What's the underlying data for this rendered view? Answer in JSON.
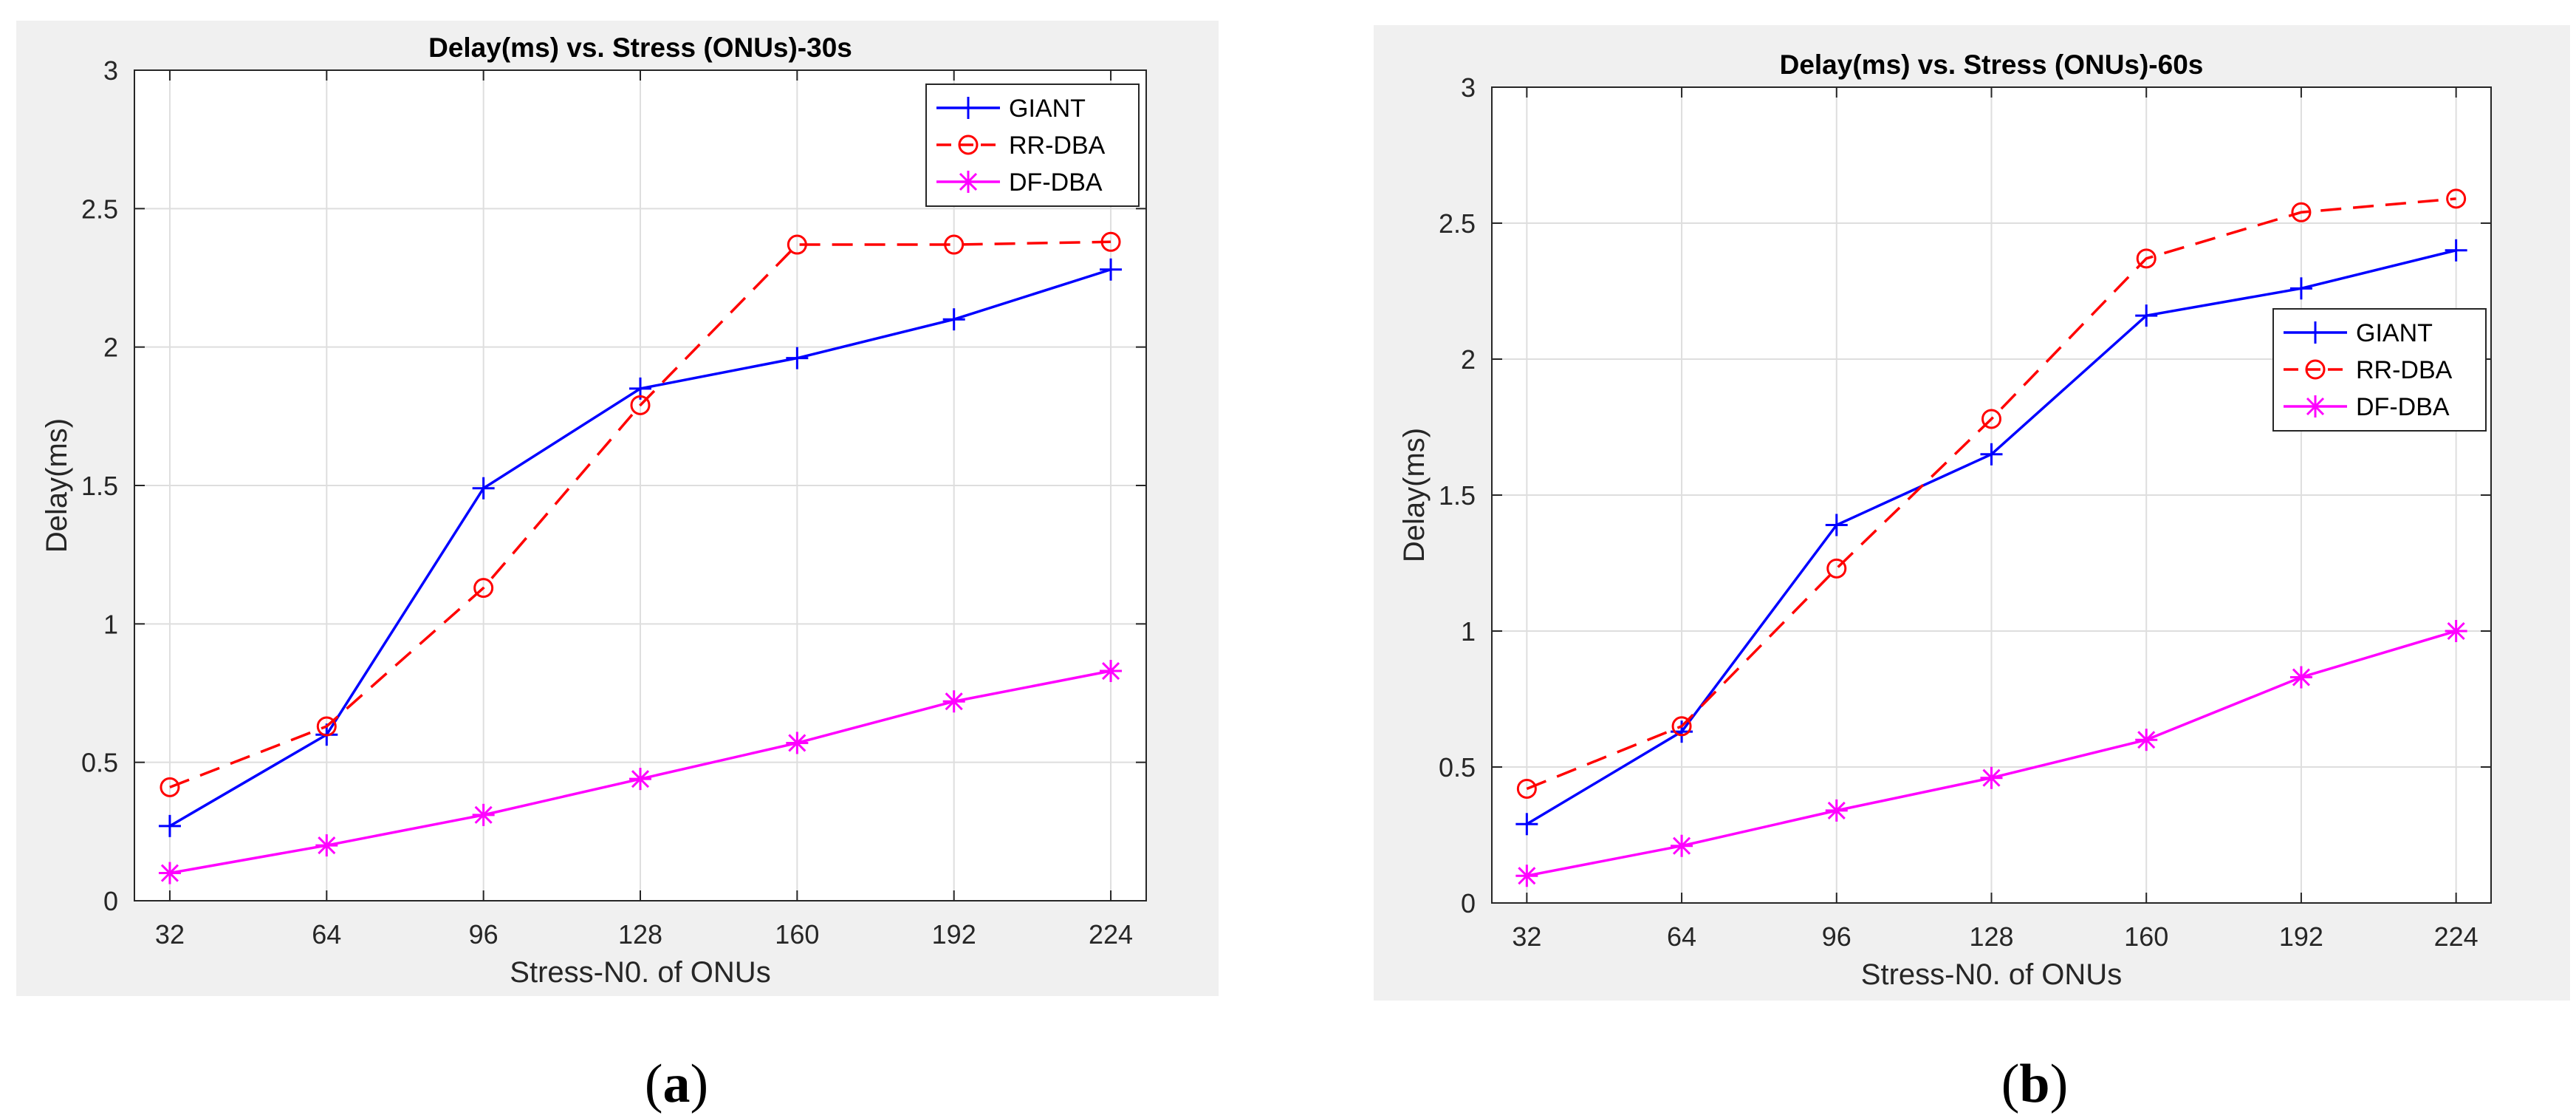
{
  "chart_data": [
    {
      "type": "line",
      "title": "Delay(ms) vs. Stress (ONUs)-30s",
      "xlabel": "Stress-N0. of ONUs",
      "ylabel": "Delay(ms)",
      "categories": [
        "32",
        "64",
        "96",
        "128",
        "160",
        "192",
        "224"
      ],
      "ylim": [
        0,
        3
      ],
      "yticks": [
        "0",
        "0.5",
        "1",
        "1.5",
        "2",
        "2.5",
        "3"
      ],
      "grid": true,
      "legend_position": "top-right",
      "series": [
        {
          "name": "GIANT",
          "color": "#0000ff",
          "marker": "plus",
          "dash": "solid",
          "values": [
            0.27,
            0.6,
            1.49,
            1.85,
            1.96,
            2.1,
            2.28
          ]
        },
        {
          "name": "RR-DBA",
          "color": "#ff0000",
          "marker": "circle",
          "dash": "dashed",
          "values": [
            0.41,
            0.63,
            1.13,
            1.79,
            2.37,
            2.37,
            2.38
          ]
        },
        {
          "name": "DF-DBA",
          "color": "#ff00ff",
          "marker": "asterisk",
          "dash": "solid",
          "values": [
            0.1,
            0.2,
            0.31,
            0.44,
            0.57,
            0.72,
            0.83
          ]
        }
      ]
    },
    {
      "type": "line",
      "title": "Delay(ms) vs. Stress (ONUs)-60s",
      "xlabel": "Stress-N0. of ONUs",
      "ylabel": "Delay(ms)",
      "categories": [
        "32",
        "64",
        "96",
        "128",
        "160",
        "192",
        "224"
      ],
      "ylim": [
        0,
        3
      ],
      "yticks": [
        "0",
        "0.5",
        "1",
        "1.5",
        "2",
        "2.5",
        "3"
      ],
      "grid": true,
      "legend_position": "right",
      "series": [
        {
          "name": "GIANT",
          "color": "#0000ff",
          "marker": "plus",
          "dash": "solid",
          "values": [
            0.29,
            0.63,
            1.39,
            1.65,
            2.16,
            2.26,
            2.4
          ]
        },
        {
          "name": "RR-DBA",
          "color": "#ff0000",
          "marker": "circle",
          "dash": "dashed",
          "values": [
            0.42,
            0.65,
            1.23,
            1.78,
            2.37,
            2.54,
            2.59
          ]
        },
        {
          "name": "DF-DBA",
          "color": "#ff00ff",
          "marker": "asterisk",
          "dash": "solid",
          "values": [
            0.1,
            0.21,
            0.34,
            0.46,
            0.6,
            0.83,
            1.0
          ]
        }
      ]
    }
  ],
  "captions": [
    "a",
    "b"
  ]
}
